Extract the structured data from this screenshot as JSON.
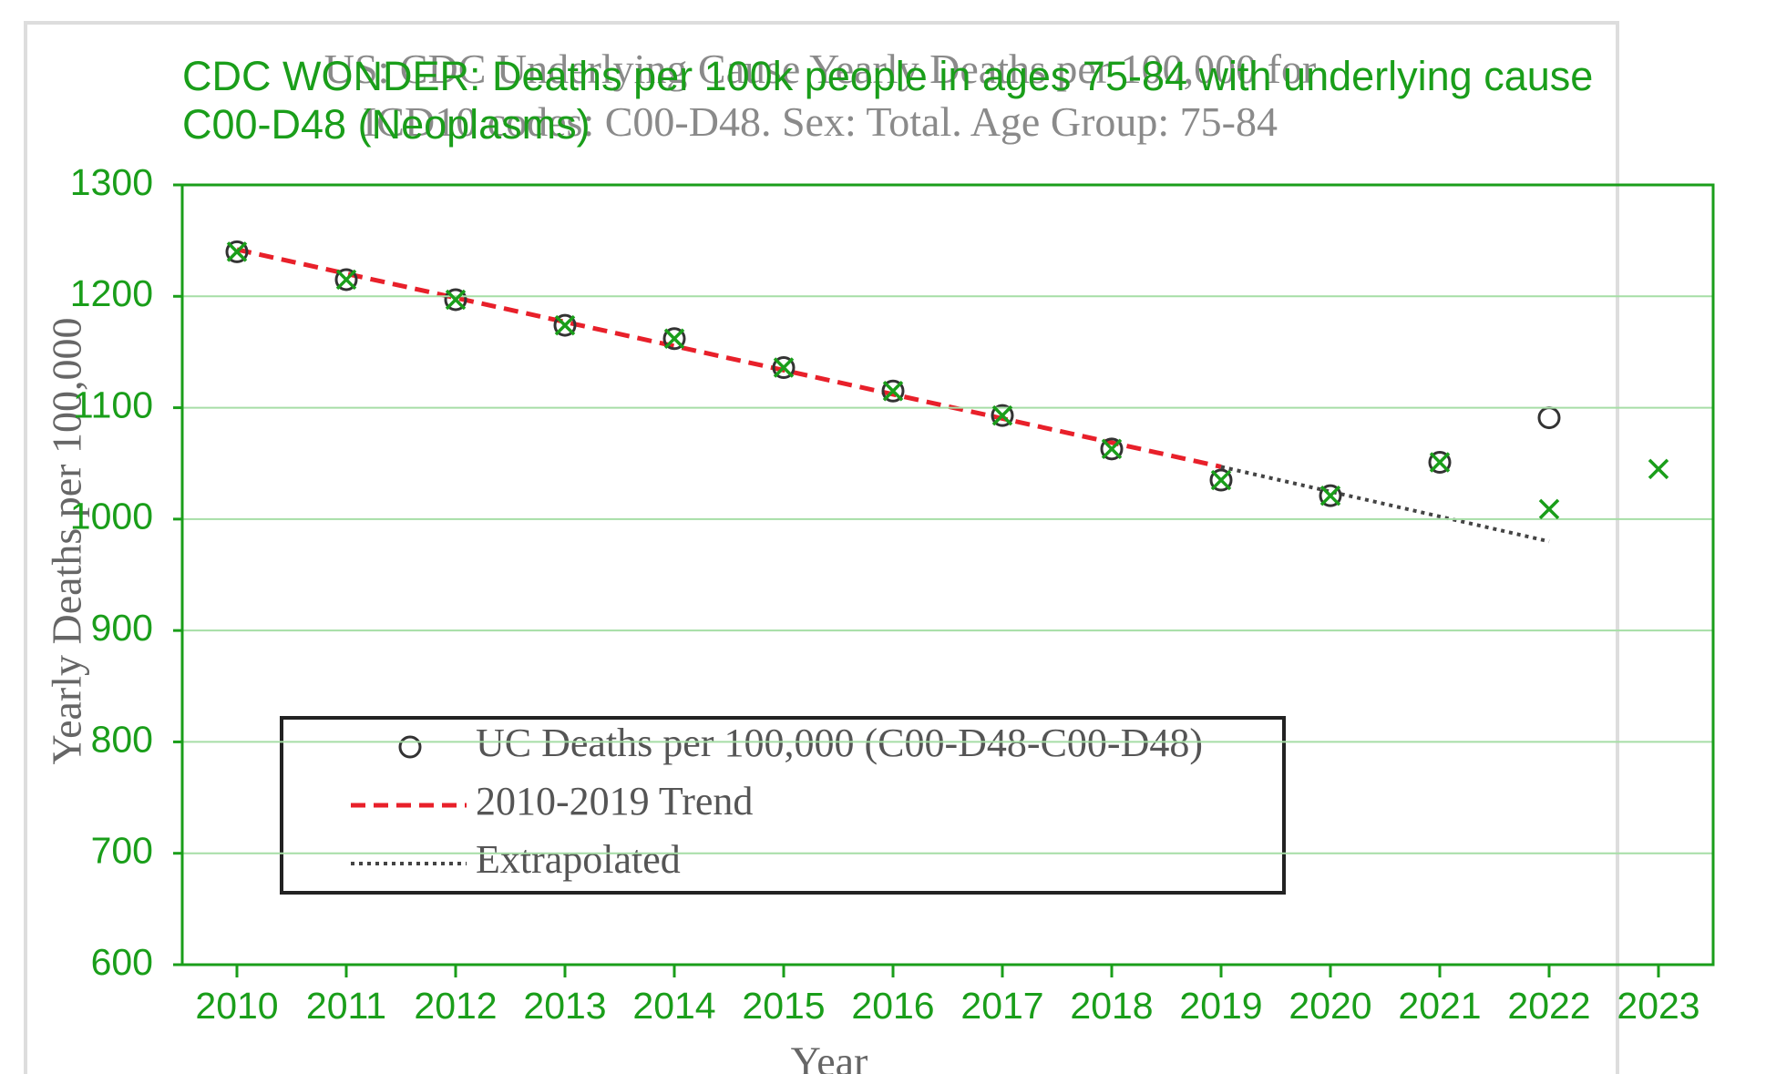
{
  "chart_data": {
    "type": "scatter",
    "title": "CDC WONDER: Deaths per 100k people in ages 75-84 with underlying cause C00-D48 (Neoplasms)",
    "subtitle": "US: CDC Underlying Cause Yearly Deaths per 100,000 for ICD10 codes: C00-D48. Sex: Total. Age Group: 75-84",
    "x_label": "Year",
    "y_label": "Yearly Deaths per 100,000",
    "xlim": [
      2009.5,
      2023.5
    ],
    "ylim": [
      600,
      1300
    ],
    "xticks": [
      2010,
      2011,
      2012,
      2013,
      2014,
      2015,
      2016,
      2017,
      2018,
      2019,
      2020,
      2021,
      2022,
      2023
    ],
    "yticks": [
      600,
      700,
      800,
      900,
      1000,
      1100,
      1200,
      1300
    ],
    "grid": true,
    "legend": "lower left",
    "series": [
      {
        "name": "UC Deaths per 100,000 (C00-D48-C00-D48)",
        "color": "#333333",
        "marker": "o",
        "x": [
          2010,
          2011,
          2012,
          2013,
          2014,
          2015,
          2016,
          2017,
          2018,
          2019,
          2020,
          2021,
          2022
        ],
        "values": [
          1240,
          1215,
          1197,
          1174,
          1162,
          1136,
          1115,
          1093,
          1063,
          1035,
          1021,
          1051,
          1091
        ]
      },
      {
        "name": "2010-2019 Trend",
        "color": "#e8202a",
        "line": "dashed",
        "x": [
          2010,
          2019
        ],
        "values": [
          1242,
          1047
        ]
      },
      {
        "name": "Extrapolated",
        "color": "#444444",
        "line": "dotted",
        "x": [
          2019,
          2022
        ],
        "values": [
          1047,
          980
        ]
      },
      {
        "color": "#1a9e1a",
        "marker": "x",
        "x": [
          2010,
          2011,
          2012,
          2013,
          2014,
          2015,
          2016,
          2017,
          2018,
          2019,
          2020,
          2021,
          2022,
          2023
        ],
        "values": [
          1240,
          1215,
          1197,
          1174,
          1162,
          1136,
          1115,
          1093,
          1063,
          1035,
          1021,
          1051,
          1009,
          1045
        ]
      }
    ]
  }
}
